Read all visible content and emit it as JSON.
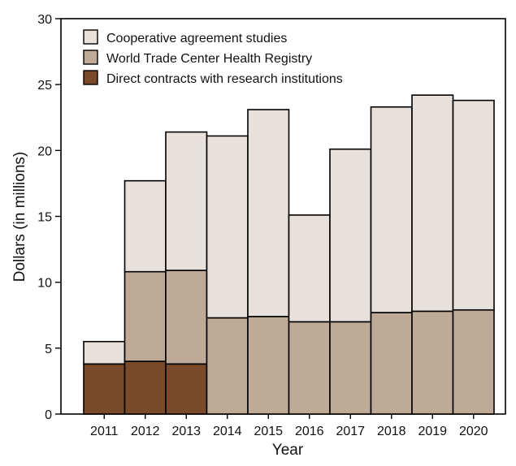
{
  "chart_data": {
    "type": "bar",
    "stacked": true,
    "title": "",
    "xlabel": "Year",
    "ylabel": "Dollars (in millions)",
    "ylim": [
      0,
      30
    ],
    "yticks": [
      0,
      5,
      10,
      15,
      20,
      25,
      30
    ],
    "categories": [
      "2011",
      "2012",
      "2013",
      "2014",
      "2015",
      "2016",
      "2017",
      "2018",
      "2019",
      "2020"
    ],
    "series": [
      {
        "name": "Direct contracts with research institutions",
        "color": "#7a4b2a",
        "values": [
          3.8,
          4.0,
          3.8,
          0,
          0,
          0,
          0,
          0,
          0,
          0
        ]
      },
      {
        "name": "World Trade Center Health Registry",
        "color": "#bfaa98",
        "values": [
          0,
          6.8,
          7.1,
          7.3,
          7.4,
          7.0,
          7.0,
          7.7,
          7.8,
          7.9
        ]
      },
      {
        "name": "Cooperative agreement studies",
        "color": "#e8e0da",
        "values": [
          1.7,
          6.9,
          10.5,
          13.8,
          15.7,
          8.1,
          13.1,
          15.6,
          16.4,
          15.9
        ]
      }
    ],
    "legend": {
      "placement": "top-left",
      "order": [
        "Cooperative agreement studies",
        "World Trade Center Health Registry",
        "Direct contracts with research institutions"
      ]
    },
    "grid": false
  }
}
